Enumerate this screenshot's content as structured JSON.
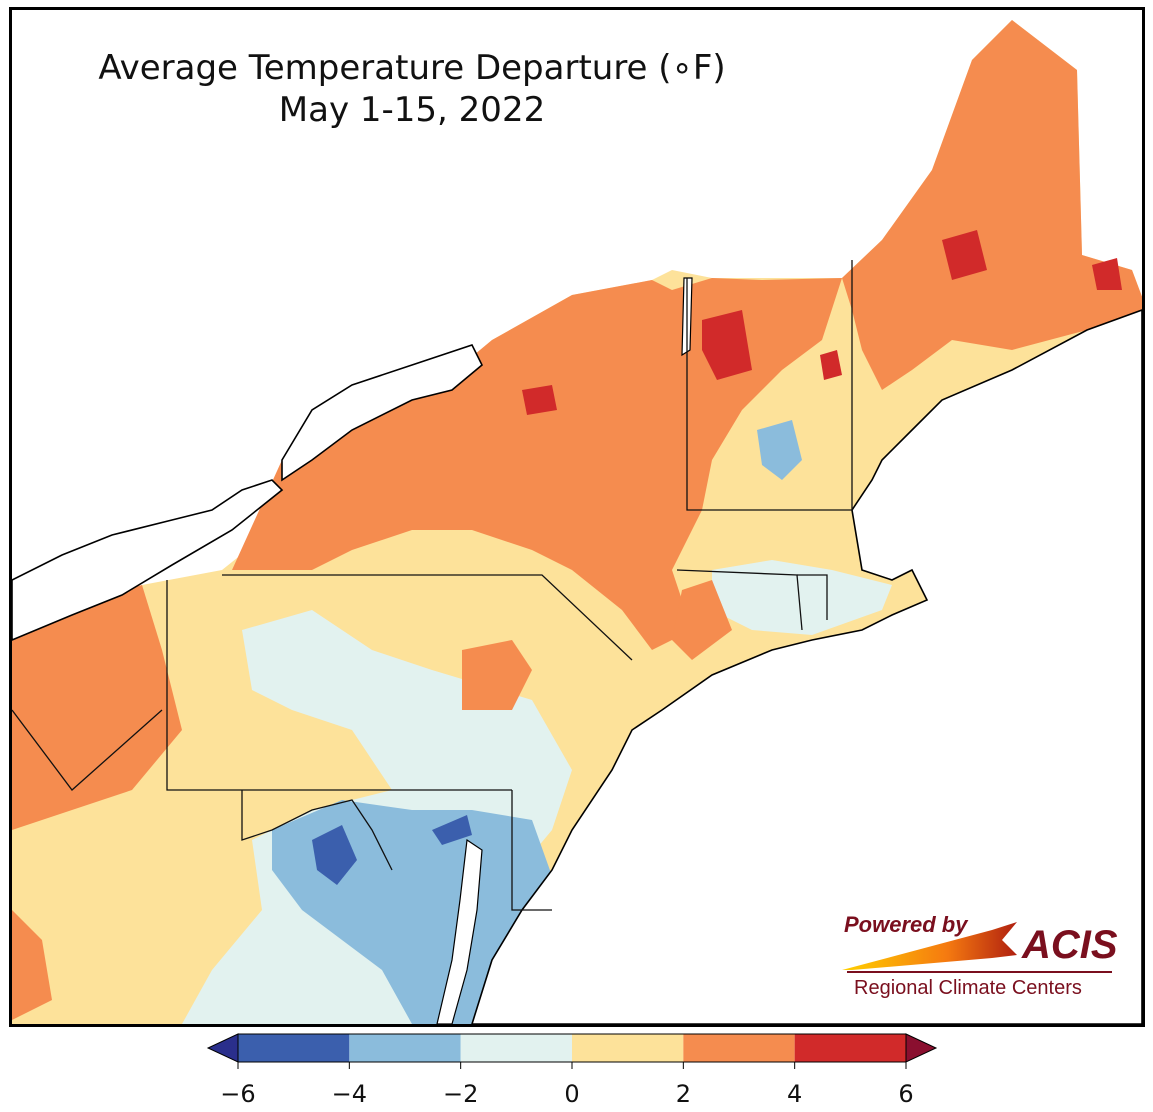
{
  "title": {
    "line1": "Average Temperature Departure (∘F)",
    "line2": "May 1-15, 2022"
  },
  "legend": {
    "ticks": [
      "−6",
      "−4",
      "−2",
      "0",
      "2",
      "4",
      "6"
    ],
    "bins": [
      {
        "range": [
          -6,
          -4
        ],
        "color": "#3b5fad"
      },
      {
        "range": [
          -4,
          -2
        ],
        "color": "#8bbcdc"
      },
      {
        "range": [
          -2,
          0
        ],
        "color": "#e2f2ef"
      },
      {
        "range": [
          0,
          2
        ],
        "color": "#fde29a"
      },
      {
        "range": [
          2,
          4
        ],
        "color": "#f58c4f"
      },
      {
        "range": [
          4,
          6
        ],
        "color": "#d12a2a"
      }
    ],
    "below_color": "#2a2f8c",
    "above_color": "#8a0f2f"
  },
  "logo": {
    "powered_by": "Powered by",
    "name": "ACIS",
    "subtitle": "Regional Climate Centers"
  }
}
